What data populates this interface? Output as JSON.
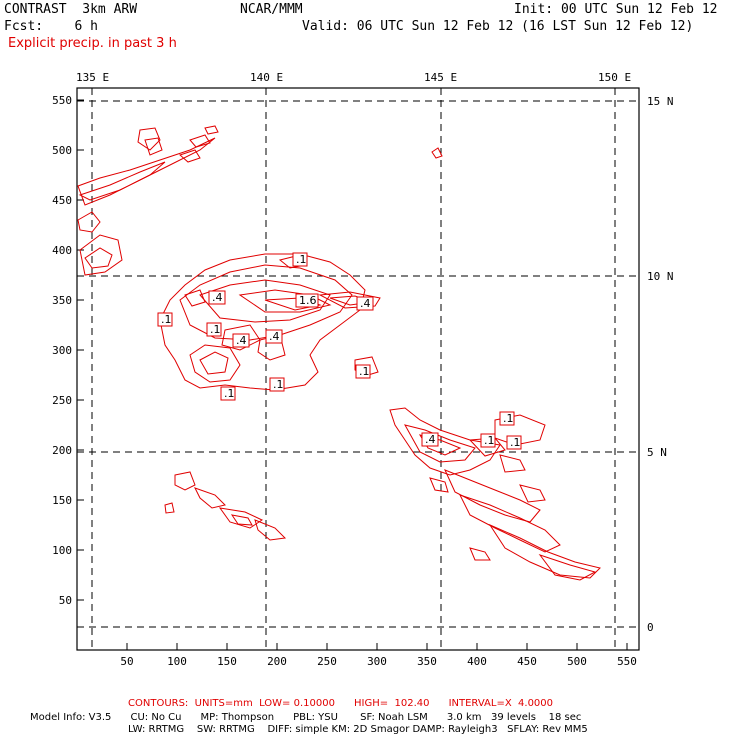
{
  "header": {
    "model": "CONTRAST  3km ARW",
    "org": "NCAR/MMM",
    "init": "Init: 00 UTC Sun 12 Feb 12",
    "fcst": "Fcst:    6 h",
    "valid": "Valid: 06 UTC Sun 12 Feb 12 (16 LST Sun 12 Feb 12)",
    "field": "Explicit precip. in past 3 h"
  },
  "axes": {
    "lon_labels": [
      "135 E",
      "140 E",
      "145 E",
      "150 E"
    ],
    "lat_labels": [
      "15 N",
      "10 N",
      "5 N",
      "0"
    ],
    "y_ticks": [
      "550",
      "500",
      "450",
      "400",
      "350",
      "300",
      "250",
      "200",
      "150",
      "100",
      "50"
    ],
    "x_ticks": [
      "50",
      "100",
      "150",
      "200",
      "250",
      "300",
      "350",
      "400",
      "450",
      "500",
      "550"
    ]
  },
  "contour_labels": [
    {
      "text": ".1",
      "region": "north-central"
    },
    {
      "text": ".4",
      "region": "north-central"
    },
    {
      "text": "1.6",
      "region": "north-central"
    },
    {
      "text": ".4",
      "region": "north-central"
    },
    {
      "text": ".1",
      "region": "north-central"
    },
    {
      "text": ".1",
      "region": "north-central"
    },
    {
      "text": ".4",
      "region": "north-central"
    },
    {
      "text": ".4",
      "region": "north-central"
    },
    {
      "text": ".1",
      "region": "north-central"
    },
    {
      "text": ".1",
      "region": "north-central"
    },
    {
      "text": ".1",
      "region": "east"
    },
    {
      "text": ".1",
      "region": "southeast"
    },
    {
      "text": ".4",
      "region": "southeast"
    },
    {
      "text": ".1",
      "region": "southeast"
    },
    {
      "text": ".1",
      "region": "southeast"
    }
  ],
  "footer": {
    "contours": "CONTOURS:  UNITS=mm  LOW= 0.10000      HIGH=  102.40      INTERVAL=X  4.0000",
    "line1": "Model Info: V3.5      CU: No Cu      MP: Thompson      PBL: YSU       SF: Noah LSM      3.0 km   39 levels    18 sec",
    "line2": "LW: RRTMG    SW: RRTMG    DIFF: simple KM: 2D Smagor DAMP: Rayleigh3   SFLAY: Rev MM5"
  },
  "colors": {
    "contour": "#e00000",
    "grid": "#000000"
  }
}
